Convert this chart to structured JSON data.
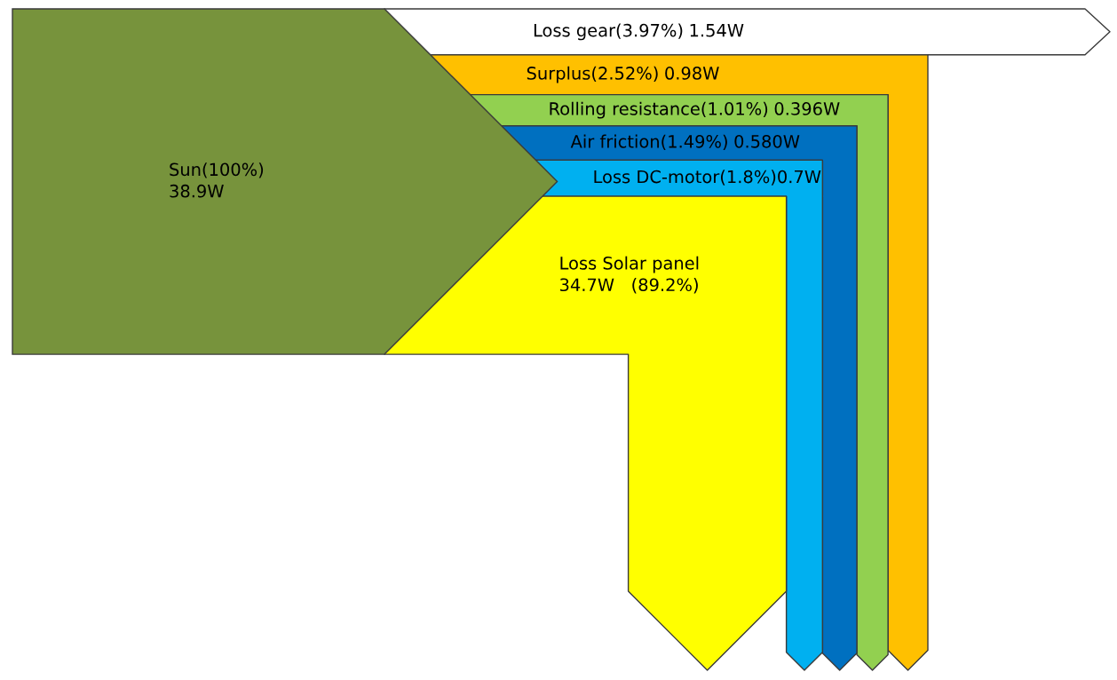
{
  "chart_data": {
    "type": "other",
    "categories": [
      "Sun(100%)",
      "Loss gear(3.97%)",
      "Surplus(2.52%)",
      "Rolling resistance(1.01%)",
      "Air friction(1.49%)",
      "Loss DC-motor(1.8%)",
      "Loss Solar panel"
    ],
    "values": [
      38.9,
      1.54,
      0.98,
      0.396,
      0.58,
      0.7,
      34.7
    ],
    "value_labels": [
      "38.9W",
      "1.54W",
      "0.98W",
      "0.396W",
      "0.580W",
      "0.7W",
      "34.7W   (89.2%)"
    ],
    "colors": [
      "#77933c",
      "#ffffff",
      "#ffc000",
      "#92d050",
      "#0070c0",
      "#00b0f0",
      "#ffff00"
    ]
  }
}
